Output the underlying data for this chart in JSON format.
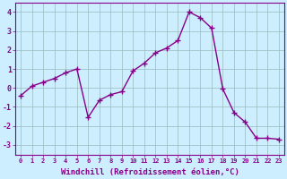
{
  "x": [
    0,
    1,
    2,
    3,
    4,
    5,
    6,
    7,
    8,
    9,
    10,
    11,
    12,
    13,
    14,
    15,
    16,
    17,
    18,
    19,
    20,
    21,
    22,
    23
  ],
  "y": [
    -0.4,
    0.1,
    0.3,
    0.5,
    0.8,
    1.0,
    -1.55,
    -0.65,
    -0.35,
    -0.2,
    0.9,
    1.3,
    1.85,
    2.1,
    2.5,
    4.0,
    3.7,
    3.15,
    -0.05,
    -1.3,
    -1.8,
    -2.65,
    -2.65,
    -2.7
  ],
  "line_color": "#880088",
  "marker": "+",
  "marker_size": 4,
  "marker_lw": 1.0,
  "line_width": 1.0,
  "xlabel": "Windchill (Refroidissement éolien,°C)",
  "xlabel_fontsize": 6.5,
  "bg_color": "#cceeff",
  "grid_color": "#99bbbb",
  "tick_color": "#880088",
  "label_color": "#880088",
  "ylim": [
    -3.5,
    4.5
  ],
  "xlim": [
    -0.5,
    23.5
  ],
  "yticks": [
    -3,
    -2,
    -1,
    0,
    1,
    2,
    3,
    4
  ],
  "xticks": [
    0,
    1,
    2,
    3,
    4,
    5,
    6,
    7,
    8,
    9,
    10,
    11,
    12,
    13,
    14,
    15,
    16,
    17,
    18,
    19,
    20,
    21,
    22,
    23
  ],
  "xtick_labels": [
    "0",
    "1",
    "2",
    "3",
    "4",
    "5",
    "6",
    "7",
    "8",
    "9",
    "10",
    "11",
    "12",
    "13",
    "14",
    "15",
    "16",
    "17",
    "18",
    "19",
    "20",
    "21",
    "22",
    "23"
  ]
}
